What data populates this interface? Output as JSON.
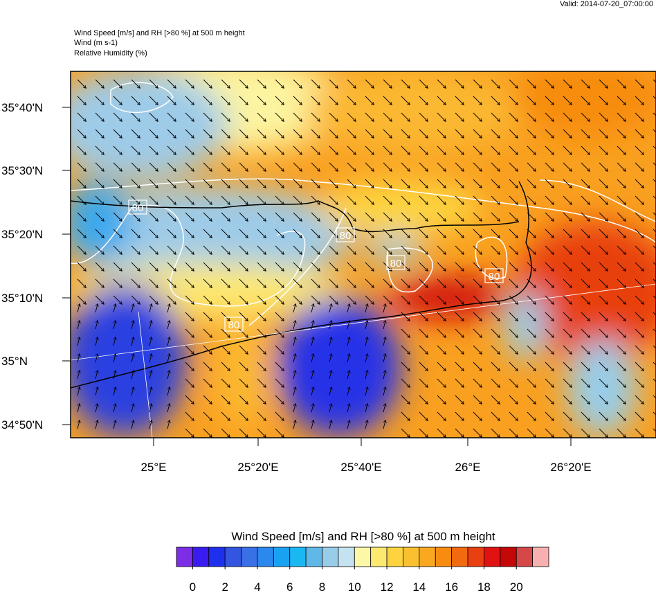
{
  "header": {
    "valid": "Valid: 2014-07-20_07:00:00",
    "lines": [
      "Wind Speed [m/s] and RH [>80 %] at 500 m height",
      "Wind   (m s-1)",
      "Relative Humidity   (%)"
    ]
  },
  "map": {
    "lat_labels": [
      "35°40'N",
      "35°30'N",
      "35°20'N",
      "35°10'N",
      "35°N",
      "34°50'N"
    ],
    "lon_labels": [
      "25°E",
      "25°20'E",
      "25°40'E",
      "26°E",
      "26°20'E"
    ],
    "contour_labels": [
      "80",
      "80",
      "80",
      "80",
      "80"
    ]
  },
  "colorbar": {
    "title": "Wind Speed [m/s] and RH [>80 %] at 500 m height",
    "colors": [
      "#7b2ee6",
      "#3a1cf0",
      "#1e30ee",
      "#3355e0",
      "#3a70e6",
      "#2a88ee",
      "#1aa2f2",
      "#1ab8f2",
      "#60b8e8",
      "#98cdea",
      "#c4e2f0",
      "#fdf8a8",
      "#fde870",
      "#fdd440",
      "#fbc030",
      "#f9a820",
      "#f78c10",
      "#f26a10",
      "#e84010",
      "#e01212",
      "#c40808",
      "#d44848",
      "#f6b0b0"
    ],
    "ticks": [
      0,
      2,
      4,
      6,
      8,
      10,
      12,
      14,
      16,
      18,
      20
    ]
  }
}
